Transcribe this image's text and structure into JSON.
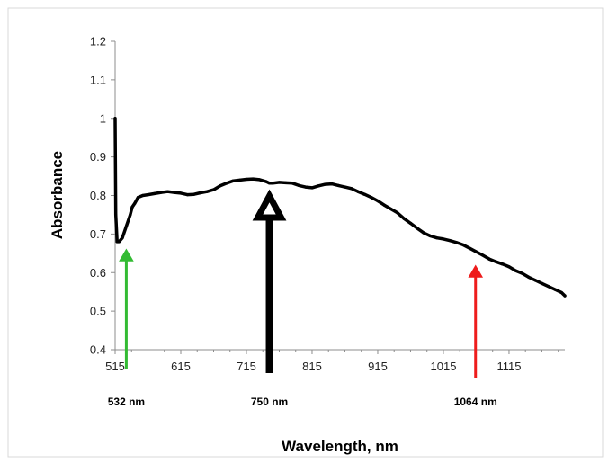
{
  "chart_data": {
    "type": "line",
    "title": "",
    "xlabel": "Wavelength, nm",
    "ylabel": "Absorbance",
    "xlim": [
      515,
      1200
    ],
    "ylim": [
      0.4,
      1.2
    ],
    "x_ticks": [
      515,
      615,
      715,
      815,
      915,
      1015,
      1115
    ],
    "x_tick_labels": [
      "515",
      "615",
      "715",
      "815",
      "915",
      "1015",
      "1115"
    ],
    "y_ticks": [
      0.4,
      0.5,
      0.6,
      0.7,
      0.8,
      0.9,
      1.0,
      1.1,
      1.2
    ],
    "y_tick_labels": [
      "0.4",
      "0.5",
      "0.6",
      "0.7",
      "0.8",
      "0.9",
      "1",
      "1.1",
      "1.2"
    ],
    "grid": false,
    "legend": "none",
    "series": [
      {
        "color": "#000000",
        "x": [
          515,
          516,
          518,
          521,
          526,
          532,
          538,
          541,
          545,
          550,
          557,
          565,
          575,
          585,
          595,
          605,
          615,
          625,
          635,
          645,
          655,
          665,
          675,
          685,
          695,
          705,
          715,
          725,
          735,
          745,
          750,
          755,
          765,
          775,
          785,
          795,
          805,
          815,
          825,
          835,
          845,
          855,
          865,
          875,
          885,
          895,
          905,
          915,
          925,
          935,
          945,
          955,
          965,
          975,
          985,
          995,
          1005,
          1015,
          1025,
          1035,
          1045,
          1055,
          1064,
          1075,
          1085,
          1095,
          1105,
          1115,
          1125,
          1135,
          1145,
          1155,
          1165,
          1175,
          1185,
          1195,
          1200
        ],
        "y": [
          1.0,
          0.75,
          0.68,
          0.68,
          0.69,
          0.72,
          0.75,
          0.77,
          0.78,
          0.795,
          0.8,
          0.802,
          0.805,
          0.808,
          0.81,
          0.808,
          0.806,
          0.802,
          0.803,
          0.807,
          0.81,
          0.815,
          0.825,
          0.832,
          0.838,
          0.84,
          0.842,
          0.843,
          0.841,
          0.836,
          0.832,
          0.832,
          0.834,
          0.833,
          0.832,
          0.826,
          0.822,
          0.82,
          0.825,
          0.829,
          0.83,
          0.826,
          0.822,
          0.818,
          0.81,
          0.803,
          0.795,
          0.786,
          0.775,
          0.765,
          0.755,
          0.74,
          0.728,
          0.715,
          0.703,
          0.695,
          0.69,
          0.687,
          0.683,
          0.678,
          0.672,
          0.663,
          0.655,
          0.645,
          0.635,
          0.628,
          0.622,
          0.615,
          0.605,
          0.598,
          0.588,
          0.58,
          0.572,
          0.564,
          0.556,
          0.548,
          0.54
        ]
      }
    ],
    "annotations": [
      {
        "x": 532,
        "label": "532 nm",
        "color": "#33bb33"
      },
      {
        "x": 750,
        "label": "750 nm",
        "color": "#000000"
      },
      {
        "x": 1064,
        "label": "1064 nm",
        "color": "#ee1c1c"
      }
    ]
  }
}
